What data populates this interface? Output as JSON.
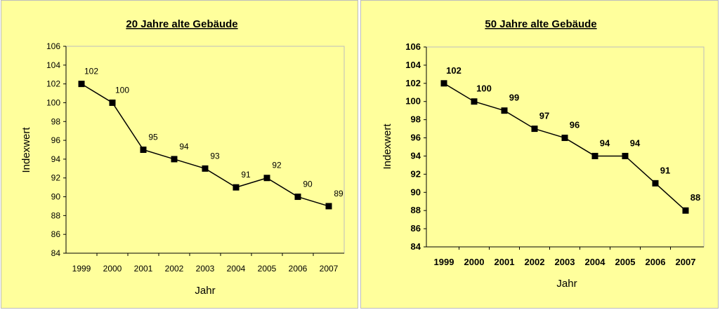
{
  "chart_data": [
    {
      "type": "line",
      "title": "20 Jahre alte Gebäude",
      "xlabel": "Jahr",
      "ylabel": "Indexwert",
      "ylim": [
        84,
        106
      ],
      "yticks": [
        "84",
        "86",
        "88",
        "90",
        "92",
        "94",
        "96",
        "98",
        "100",
        "102",
        "104",
        "106"
      ],
      "categories": [
        "1999",
        "2000",
        "2001",
        "2002",
        "2003",
        "2004",
        "2005",
        "2006",
        "2007"
      ],
      "values": [
        102,
        100,
        95,
        94,
        93,
        91,
        92,
        90,
        89
      ],
      "labels": [
        "102",
        "100",
        "95",
        "94",
        "93",
        "91",
        "92",
        "90",
        "89"
      ],
      "grid": false,
      "legend": "none",
      "plot_bg": "#ffff9c",
      "line_color": "#000000",
      "marker": "square"
    },
    {
      "type": "line",
      "title": "50 Jahre alte Gebäude",
      "xlabel": "Jahr",
      "ylabel": "Indexwert",
      "ylim": [
        84,
        106
      ],
      "yticks": [
        "84",
        "86",
        "88",
        "90",
        "92",
        "94",
        "96",
        "98",
        "100",
        "102",
        "104",
        "106"
      ],
      "categories": [
        "1999",
        "2000",
        "2001",
        "2002",
        "2003",
        "2004",
        "2005",
        "2006",
        "2007"
      ],
      "values": [
        102,
        100,
        99,
        97,
        96,
        94,
        94,
        91,
        88
      ],
      "labels": [
        "102",
        "100",
        "99",
        "97",
        "96",
        "94",
        "94",
        "91",
        "88"
      ],
      "grid": false,
      "legend": "none",
      "plot_bg": "#ffff9c",
      "line_color": "#000000",
      "marker": "square"
    }
  ]
}
